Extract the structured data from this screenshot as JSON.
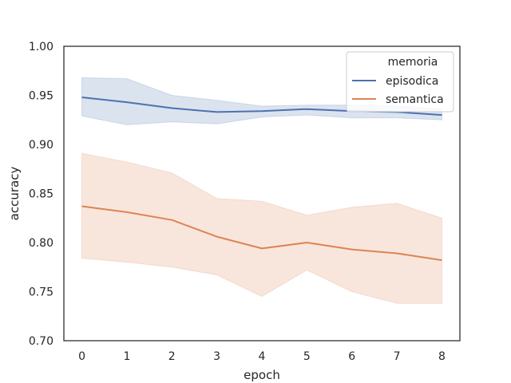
{
  "chart_data": {
    "type": "line",
    "title": "",
    "xlabel": "epoch",
    "ylabel": "accuracy",
    "x": [
      0,
      1,
      2,
      3,
      4,
      5,
      6,
      7,
      8
    ],
    "xticks": [
      "0",
      "1",
      "2",
      "3",
      "4",
      "5",
      "6",
      "7",
      "8"
    ],
    "yticks": [
      "0.70",
      "0.75",
      "0.80",
      "0.85",
      "0.90",
      "0.95",
      "1.00"
    ],
    "xlim": [
      -0.4,
      8.4
    ],
    "ylim": [
      0.7,
      1.0
    ],
    "grid": false,
    "legend": {
      "title": "memoria",
      "position": "top-right"
    },
    "series": [
      {
        "name": "episodica",
        "color": "#4c72b0",
        "values": [
          0.948,
          0.943,
          0.937,
          0.933,
          0.934,
          0.936,
          0.934,
          0.933,
          0.93
        ],
        "ci_lower": [
          0.929,
          0.92,
          0.923,
          0.921,
          0.928,
          0.93,
          0.927,
          0.927,
          0.925
        ],
        "ci_upper": [
          0.968,
          0.967,
          0.95,
          0.945,
          0.939,
          0.94,
          0.94,
          0.939,
          0.936
        ]
      },
      {
        "name": "semantica",
        "color": "#dd8452",
        "values": [
          0.837,
          0.831,
          0.823,
          0.806,
          0.794,
          0.8,
          0.793,
          0.789,
          0.782
        ],
        "ci_lower": [
          0.784,
          0.78,
          0.775,
          0.767,
          0.745,
          0.772,
          0.75,
          0.738,
          0.738
        ],
        "ci_upper": [
          0.891,
          0.882,
          0.871,
          0.845,
          0.842,
          0.828,
          0.836,
          0.84,
          0.825
        ]
      }
    ]
  }
}
